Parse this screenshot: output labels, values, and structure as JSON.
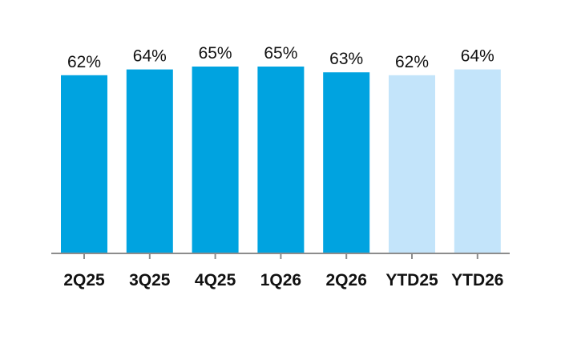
{
  "chart_data": {
    "type": "bar",
    "categories": [
      "2Q25",
      "3Q25",
      "4Q25",
      "1Q26",
      "2Q26",
      "YTD25",
      "YTD26"
    ],
    "values": [
      62,
      64,
      65,
      65,
      63,
      62,
      64
    ],
    "value_labels": [
      "62%",
      "64%",
      "65%",
      "65%",
      "63%",
      "62%",
      "64%"
    ],
    "bar_colors": [
      "#00a3e0",
      "#00a3e0",
      "#00a3e0",
      "#00a3e0",
      "#00a3e0",
      "#c3e4fa",
      "#c3e4fa"
    ],
    "axis_color": "#8c8c8c",
    "ylim": [
      0,
      65
    ],
    "grid": false,
    "legend": "none",
    "title": "",
    "xlabel": "",
    "ylabel": ""
  }
}
